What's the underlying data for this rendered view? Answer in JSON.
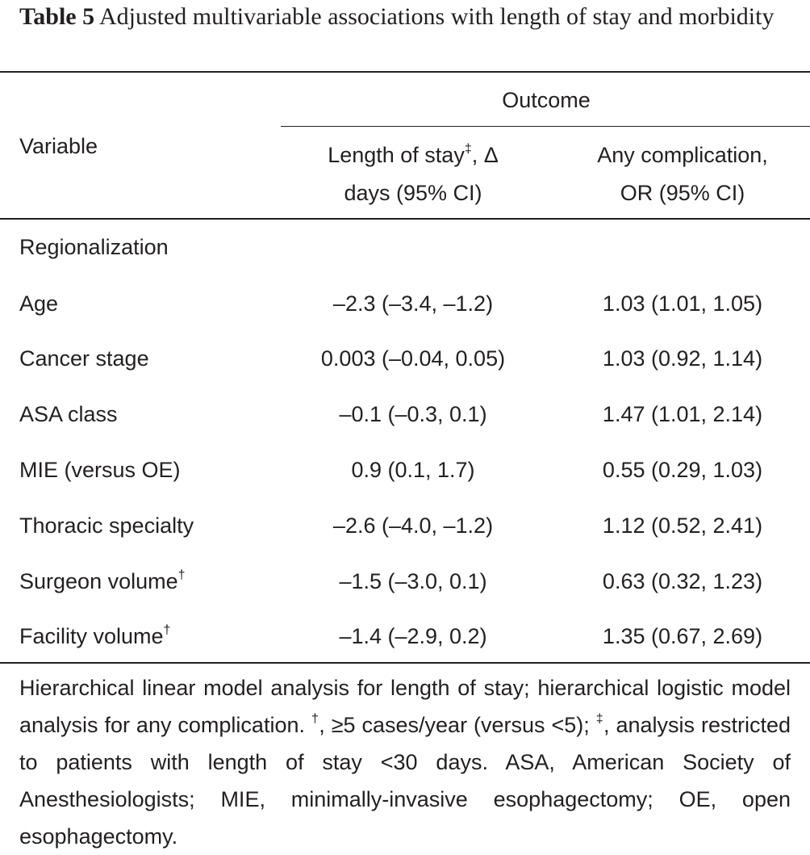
{
  "caption": {
    "label": "Table 5",
    "text": "Adjusted multivariable associations with length of stay and morbidity"
  },
  "header": {
    "variable": "Variable",
    "outcome": "Outcome",
    "col1_line1_pre": "Length of stay",
    "col1_line1_sup": "‡",
    "col1_line1_post": ", Δ",
    "col1_line2": "days (95% CI)",
    "col2_line1": "Any complication,",
    "col2_line2": "OR (95% CI)"
  },
  "section": "Regionalization",
  "rows": [
    {
      "variable": "Age",
      "sup": "",
      "los": "–2.3 (–3.4, –1.2)",
      "comp": "1.03 (1.01, 1.05)"
    },
    {
      "variable": "Cancer stage",
      "sup": "",
      "los": "0.003 (–0.04, 0.05)",
      "comp": "1.03 (0.92, 1.14)"
    },
    {
      "variable": "ASA class",
      "sup": "",
      "los": "–0.1 (–0.3, 0.1)",
      "comp": "1.47 (1.01, 2.14)"
    },
    {
      "variable": "MIE (versus OE)",
      "sup": "",
      "los": "0.9 (0.1, 1.7)",
      "comp": "0.55 (0.29, 1.03)"
    },
    {
      "variable": "Thoracic specialty",
      "sup": "",
      "los": "–2.6 (–4.0, –1.2)",
      "comp": "1.12 (0.52, 2.41)"
    },
    {
      "variable": "Surgeon volume",
      "sup": "†",
      "los": "–1.5 (–3.0, 0.1)",
      "comp": "0.63 (0.32, 1.23)"
    },
    {
      "variable": "Facility volume",
      "sup": "†",
      "los": "–1.4 (–2.9, 0.2)",
      "comp": "1.35 (0.67, 2.69)"
    }
  ],
  "footnote": {
    "part1": "Hierarchical linear model analysis for length of stay; hierarchical logistic model analysis for any complication. ",
    "sup1": "†",
    "part2": ", ≥5 cases/year (versus <5); ",
    "sup2": "‡",
    "part3": ", analysis restricted to patients with length of stay <30 days. ASA, American Society of Anesthesiologists; MIE, minimally-invasive esophagectomy; OE, open esophagectomy."
  }
}
